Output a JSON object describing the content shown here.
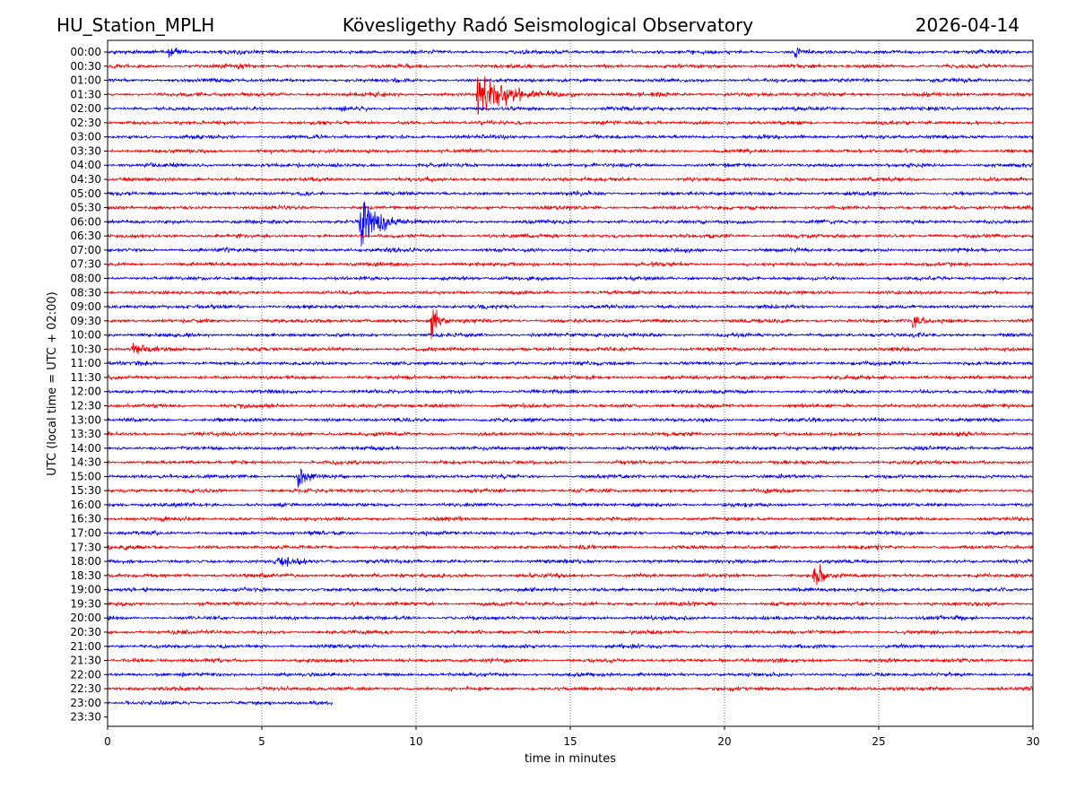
{
  "chart_data": {
    "type": "line",
    "title_left": "HU_Station_MPLH",
    "title_center": "Kövesligethy Radó Seismological Observatory",
    "title_right": "2026-04-14",
    "xlabel": "time in minutes",
    "ylabel": "UTC (local time = UTC + 02:00)",
    "xlim": [
      0,
      30
    ],
    "x_ticks": [
      "0",
      "5",
      "10",
      "15",
      "20",
      "25",
      "30"
    ],
    "x_grid": [
      5,
      10,
      15,
      20,
      25
    ],
    "y_tick_labels": [
      "00:00",
      "00:30",
      "01:00",
      "01:30",
      "02:00",
      "02:30",
      "03:00",
      "03:30",
      "04:00",
      "04:30",
      "05:00",
      "05:30",
      "06:00",
      "06:30",
      "07:00",
      "07:30",
      "08:00",
      "08:30",
      "09:00",
      "09:30",
      "10:00",
      "10:30",
      "11:00",
      "11:30",
      "12:00",
      "12:30",
      "13:00",
      "13:30",
      "14:00",
      "14:30",
      "15:00",
      "15:30",
      "16:00",
      "16:30",
      "17:00",
      "17:30",
      "18:00",
      "18:30",
      "19:00",
      "19:30",
      "20:00",
      "20:30",
      "21:00",
      "21:30",
      "22:00",
      "22:30",
      "23:00",
      "23:30"
    ],
    "trace_colors": [
      "#0000ee",
      "#ee0000"
    ],
    "trace_end_minutes": [
      30,
      30,
      30,
      30,
      30,
      30,
      30,
      30,
      30,
      30,
      30,
      30,
      30,
      30,
      30,
      30,
      30,
      30,
      30,
      30,
      30,
      30,
      30,
      30,
      30,
      30,
      30,
      30,
      30,
      30,
      30,
      30,
      30,
      30,
      30,
      30,
      30,
      30,
      30,
      30,
      30,
      30,
      30,
      30,
      30,
      30,
      7.3,
      0
    ],
    "events": [
      {
        "trace": 3,
        "minute": 12.0,
        "amplitude": 28,
        "duration": 2.0
      },
      {
        "trace": 1,
        "minute": 4.3,
        "amplitude": 6,
        "duration": 0.25
      },
      {
        "trace": 12,
        "minute": 8.2,
        "amplitude": 40,
        "duration": 1.2
      },
      {
        "trace": 19,
        "minute": 10.5,
        "amplitude": 17,
        "duration": 0.6
      },
      {
        "trace": 19,
        "minute": 26.1,
        "amplitude": 8,
        "duration": 0.5
      },
      {
        "trace": 21,
        "minute": 0.8,
        "amplitude": 6,
        "duration": 1.0
      },
      {
        "trace": 30,
        "minute": 6.2,
        "amplitude": 16,
        "duration": 0.5
      },
      {
        "trace": 37,
        "minute": 22.9,
        "amplitude": 14,
        "duration": 0.6
      },
      {
        "trace": 36,
        "minute": 5.5,
        "amplitude": 4,
        "duration": 2.0
      },
      {
        "trace": 0,
        "minute": 22.3,
        "amplitude": 7,
        "duration": 0.3
      },
      {
        "trace": 0,
        "minute": 2.0,
        "amplitude": 5,
        "duration": 1.0
      }
    ]
  }
}
